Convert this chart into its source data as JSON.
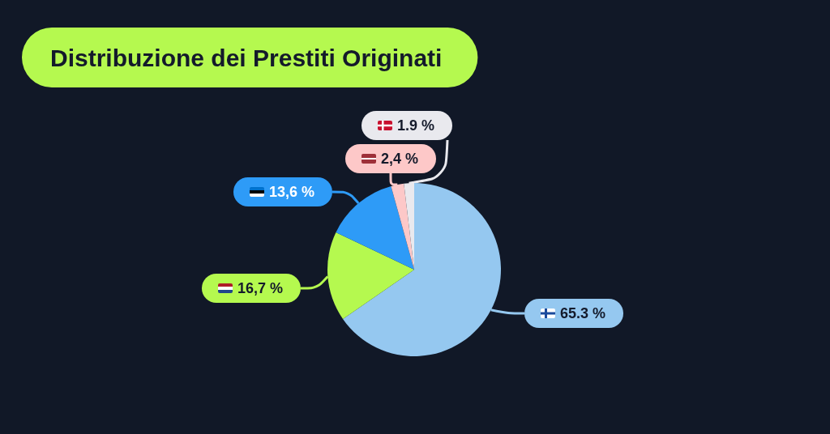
{
  "chart_data": {
    "type": "pie",
    "title": "Distribuzione dei Prestiti Originati",
    "categories": [
      null,
      null,
      null,
      null,
      null
    ],
    "values": [
      65.3,
      16.7,
      13.6,
      2.4,
      1.9
    ],
    "colors": [
      "#95c8f0",
      "#b5f94f",
      "#2e9bf7",
      "#fdc8c8",
      "#e9e9ee"
    ],
    "value_labels": [
      "65.3 %",
      "16,7 %",
      "13,6 %",
      "2,4 %",
      "1.9 %"
    ]
  }
}
